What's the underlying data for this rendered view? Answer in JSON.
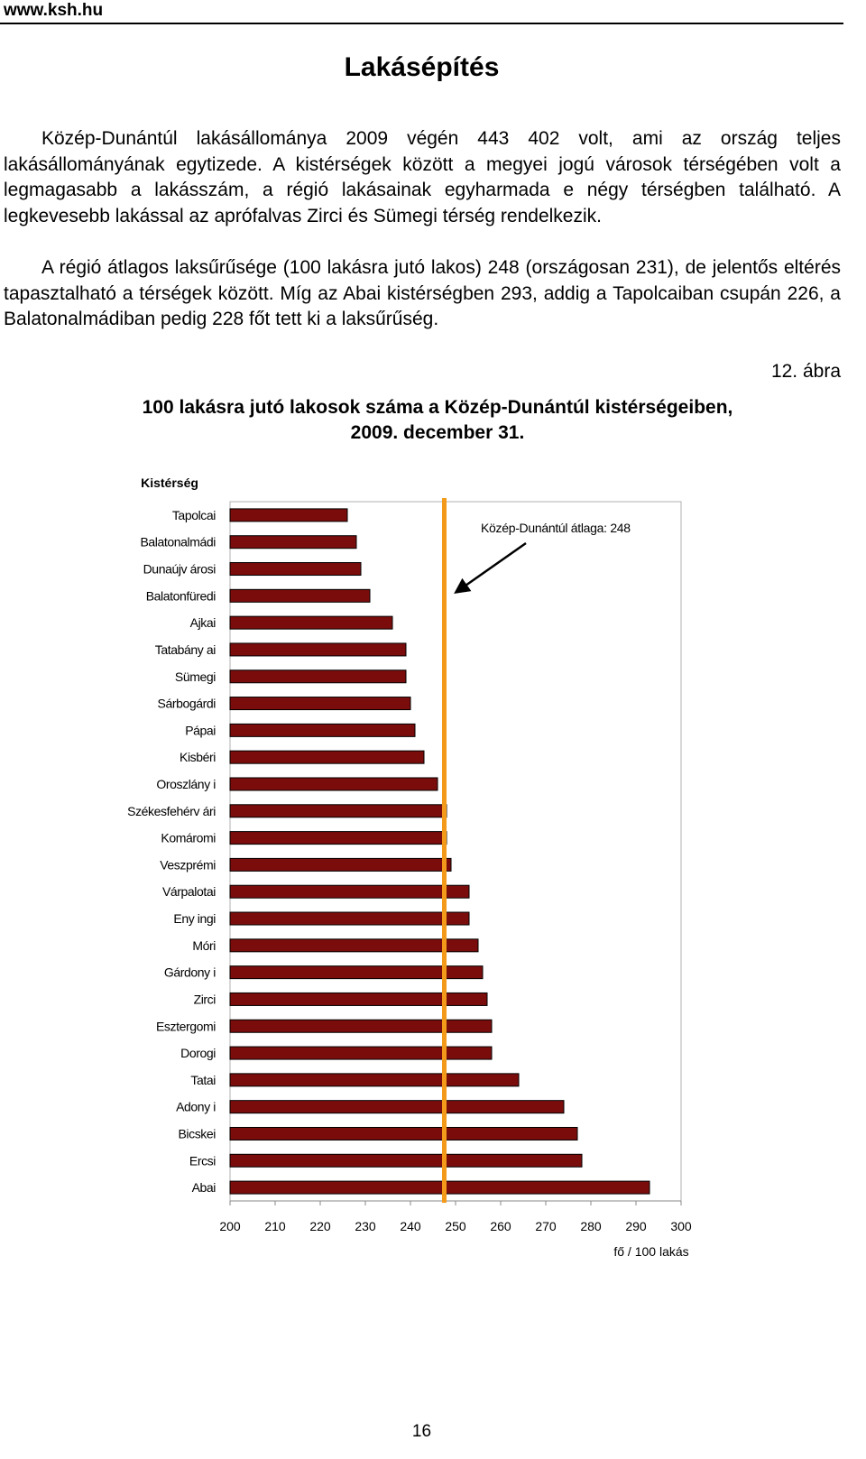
{
  "header": {
    "site": "www.ksh.hu"
  },
  "page": {
    "title": "Lakásépítés",
    "number": "16"
  },
  "text": {
    "paragraph1": "Közép-Dunántúl lakásállománya 2009 végén 443 402 volt, ami az ország teljes lakásállományának egytizede. A kistérségek között a megyei jogú városok térségében volt a legmagasabb a lakásszám, a régió lakásainak egyharmada e négy térségben található. A legkevesebb lakással az aprófalvas Zirci és Sümegi térség rendelkezik.",
    "paragraph2": "A régió átlagos laksűrűsége (100 lakásra jutó lakos) 248 (országosan 231), de jelentős eltérés tapasztalható a térségek között. Míg az Abai kistérségben 293, addig a Tapolcaiban csupán 226, a Balatonalmádiban pedig 228 főt tett ki a laksűrűség."
  },
  "figure": {
    "number": "12. ábra",
    "title_line1": "100 lakásra jutó lakosok száma a Közép-Dunántúl kistérségeiben,",
    "title_line2": "2009. december 31."
  },
  "chart_data": {
    "type": "bar",
    "orientation": "horizontal",
    "category_axis_title": "Kistérség",
    "xlabel": "fő / 100 lakás",
    "xlim": [
      200,
      300
    ],
    "xticks": [
      200,
      210,
      220,
      230,
      240,
      250,
      260,
      270,
      280,
      290,
      300
    ],
    "categories": [
      "Tapolcai",
      "Balatonalmádi",
      "Dunaújvárosi",
      "Balatonfüredi",
      "Ajkai",
      "Tatabányai",
      "Sümegi",
      "Sárbogárdi",
      "Pápai",
      "Kisbéri",
      "Oroszlányi",
      "Székesfehérvári",
      "Komáromi",
      "Veszprémi",
      "Várpalotai",
      "Enyingi",
      "Móri",
      "Gárdonyi",
      "Zirci",
      "Esztergomi",
      "Dorogi",
      "Tatai",
      "Adonyi",
      "Bicskei",
      "Ercsi",
      "Abai"
    ],
    "category_display": [
      "Tapolcai",
      "Balatonalmádi",
      "Dunaújv árosi",
      "Balatonfüredi",
      "Ajkai",
      "Tatabány ai",
      "Sümegi",
      "Sárbogárdi",
      "Pápai",
      "Kisbéri",
      "Oroszlány i",
      "Székesfehérv ári",
      "Komáromi",
      "Veszprémi",
      "Várpalotai",
      "Eny ingi",
      "Móri",
      "Gárdony i",
      "Zirci",
      "Esztergomi",
      "Dorogi",
      "Tatai",
      "Adony i",
      "Bicskei",
      "Ercsi",
      "Abai"
    ],
    "values": [
      226,
      228,
      229,
      231,
      236,
      239,
      239,
      240,
      241,
      243,
      246,
      248,
      248,
      249,
      253,
      253,
      255,
      256,
      257,
      258,
      258,
      264,
      274,
      277,
      278,
      293
    ],
    "reference_line": {
      "value": 247.5,
      "label": "Közép-Dunántúl átlaga: 248"
    },
    "colors": {
      "bar_fill": "#7b0c0c",
      "bar_stroke": "#000000",
      "reference": "#f39a1a",
      "plot_border": "#b0b0b0"
    },
    "grid": false
  }
}
